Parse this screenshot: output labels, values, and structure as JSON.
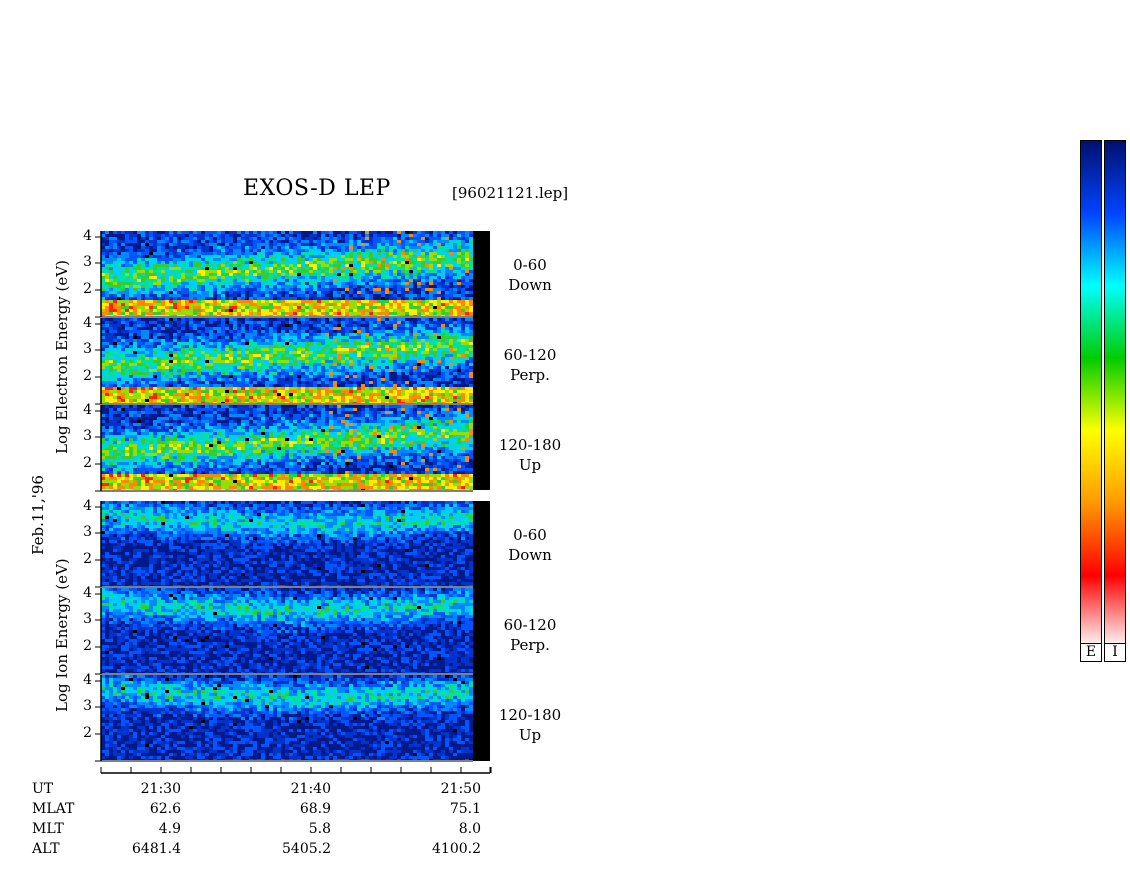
{
  "title": "EXOS-D LEP",
  "file_label": "[96021121.lep]",
  "date_label": "Feb.11,'96",
  "colorbars": {
    "labels": [
      "E",
      "I"
    ]
  },
  "chart_data": {
    "type": "heatmap",
    "title": "EXOS-D LEP",
    "groups": [
      {
        "name": "Electron",
        "ylabel": "Log Electron Energy (eV)",
        "panels": [
          {
            "pitch": "0-60",
            "dir": "Down",
            "yticks": [
              "4",
              "3",
              "2"
            ]
          },
          {
            "pitch": "60-120",
            "dir": "Perp.",
            "yticks": [
              "4",
              "3",
              "2"
            ]
          },
          {
            "pitch": "120-180",
            "dir": "Up",
            "yticks": [
              "4",
              "3",
              "2"
            ]
          }
        ]
      },
      {
        "name": "Ion",
        "ylabel": "Log Ion Energy (eV)",
        "panels": [
          {
            "pitch": "0-60",
            "dir": "Down",
            "yticks": [
              "4",
              "3",
              "2"
            ]
          },
          {
            "pitch": "60-120",
            "dir": "Perp.",
            "yticks": [
              "4",
              "3",
              "2"
            ]
          },
          {
            "pitch": "120-180",
            "dir": "Up",
            "yticks": [
              "4",
              "3",
              "2"
            ]
          }
        ]
      }
    ],
    "ylim": [
      1,
      4
    ],
    "x_labels": [
      "UT",
      "MLAT",
      "MLT",
      "ALT"
    ],
    "x_ticks": [
      {
        "UT": "21:30",
        "MLAT": "62.6",
        "MLT": "4.9",
        "ALT": "6481.4"
      },
      {
        "UT": "21:40",
        "MLAT": "68.9",
        "MLT": "5.8",
        "ALT": "5405.2"
      },
      {
        "UT": "21:50",
        "MLAT": "75.1",
        "MLT": "8.0",
        "ALT": "4100.2"
      }
    ],
    "colormap": [
      "#ffffff",
      "#ff0000",
      "#ff9900",
      "#ffff00",
      "#00cc00",
      "#00ffff",
      "#0044ff",
      "#001070"
    ]
  }
}
